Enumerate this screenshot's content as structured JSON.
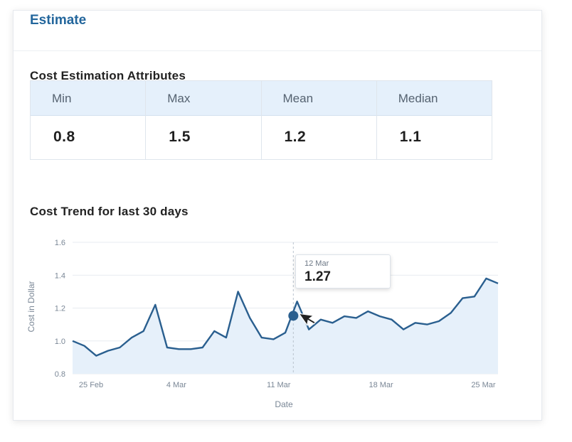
{
  "card": {
    "title": "Estimate",
    "attributes_title": "Cost Estimation Attributes",
    "trend_title": "Cost Trend for last 30 days"
  },
  "stats": [
    {
      "label": "Min",
      "value": "0.8"
    },
    {
      "label": "Max",
      "value": "1.5"
    },
    {
      "label": "Mean",
      "value": "1.2"
    },
    {
      "label": "Median",
      "value": "1.1"
    }
  ],
  "tooltip": {
    "date": "12 Mar",
    "value": "1.27"
  },
  "colors": {
    "accent": "#23669c",
    "line": "#2a5f8f",
    "area": "#e6f0fa",
    "header_bg": "#e5f0fb"
  },
  "chart_data": {
    "type": "area",
    "title": "Cost Trend for last 30 days",
    "xlabel": "Date",
    "ylabel": "Cost in Dollar",
    "ylim": [
      0.8,
      1.6
    ],
    "yticks": [
      "0.8",
      "1.0",
      "1.2",
      "1.4",
      "1.6"
    ],
    "xticks": [
      {
        "label": "25 Feb",
        "day": 0
      },
      {
        "label": "4 Mar",
        "day": 7
      },
      {
        "label": "11 Mar",
        "day": 14
      },
      {
        "label": "18 Mar",
        "day": 21
      },
      {
        "label": "25 Mar",
        "day": 28
      }
    ],
    "x_start_day_offset": -0.1,
    "x_end_day_offset": 29,
    "grid": true,
    "series": [
      {
        "values": [
          1.0,
          0.97,
          0.91,
          0.94,
          0.96,
          1.02,
          1.06,
          1.22,
          0.96,
          0.95,
          0.95,
          0.96,
          1.06,
          1.02,
          1.3,
          1.14,
          1.02,
          1.01,
          1.05,
          1.24,
          1.07,
          1.13,
          1.11,
          1.15,
          1.14,
          1.18,
          1.15,
          1.13,
          1.07,
          1.11,
          1.1,
          1.12,
          1.17,
          1.26,
          1.27,
          1.38,
          1.35
        ]
      }
    ],
    "highlight": {
      "label": "12 Mar",
      "value": 1.27
    }
  }
}
